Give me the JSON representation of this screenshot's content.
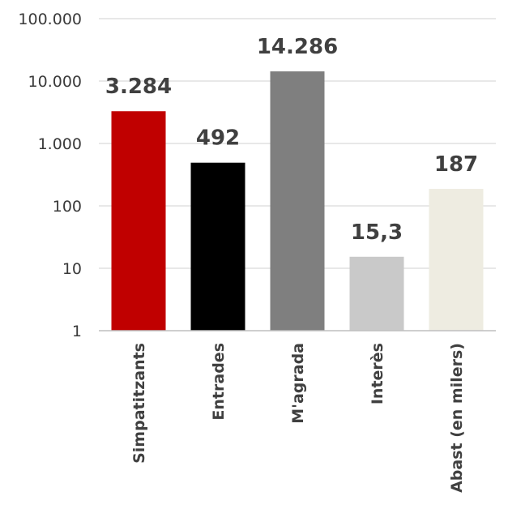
{
  "chart_data": {
    "type": "bar",
    "yscale": "log",
    "ylim": [
      1,
      100000
    ],
    "grid": true,
    "y_ticks": [
      {
        "value": 1,
        "label": "1"
      },
      {
        "value": 10,
        "label": "10"
      },
      {
        "value": 100,
        "label": "100"
      },
      {
        "value": 1000,
        "label": "1.000"
      },
      {
        "value": 10000,
        "label": "10.000"
      },
      {
        "value": 100000,
        "label": "100.000"
      }
    ],
    "categories": [
      "Simpatitzants",
      "Entrades",
      "M'agrada",
      "Interès",
      "Abast (en milers)"
    ],
    "values": [
      3284,
      492,
      14286,
      15.3,
      187
    ],
    "value_labels": [
      "3.284",
      "492",
      "14.286",
      "15,3",
      "187"
    ],
    "colors": [
      "#c00000",
      "#000000",
      "#7f7f7f",
      "#c9c9c9",
      "#eeece1"
    ]
  }
}
